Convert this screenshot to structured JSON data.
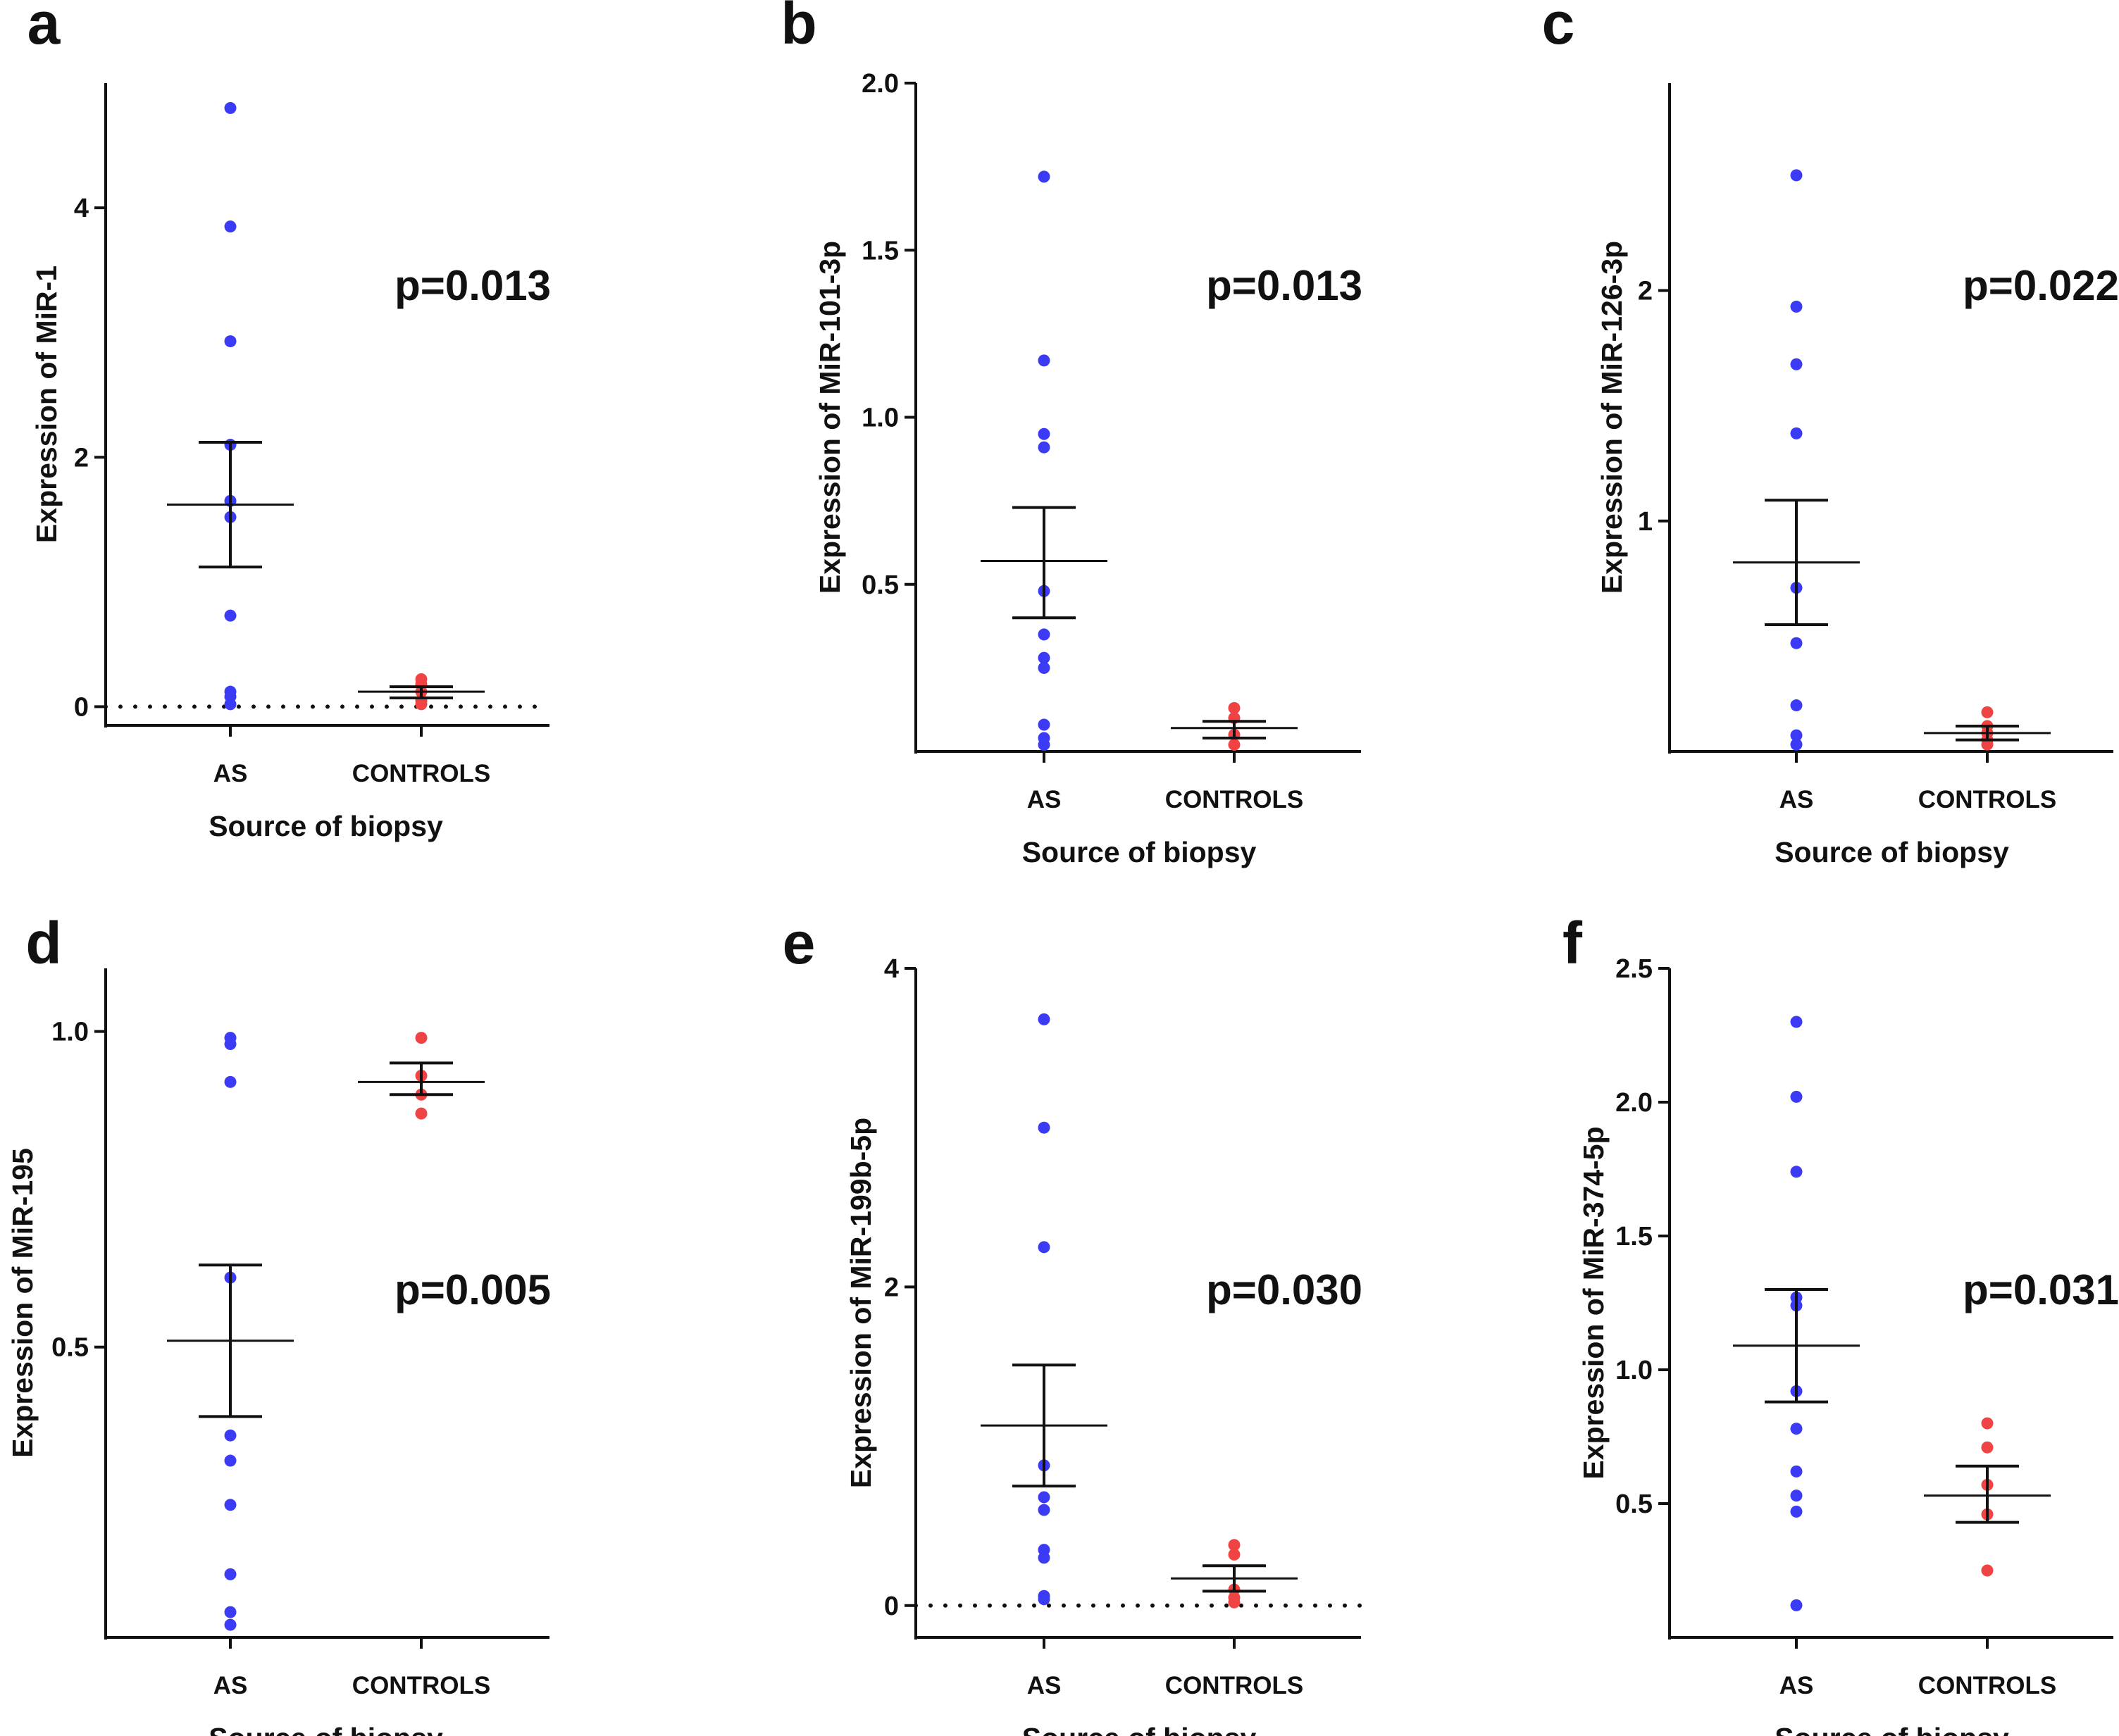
{
  "figure": {
    "colors": {
      "as": "#3b3bf5",
      "controls": "#f04444",
      "axis": "#111111"
    }
  },
  "chart_data": [
    {
      "panel": "a",
      "type": "scatter",
      "ylabel": "Expression of MiR-1",
      "xlabel": "Source of  biopsy",
      "categories": [
        "AS",
        "CONTROLS"
      ],
      "pvalue": "p=0.013",
      "ylim": [
        -0.15,
        5.0
      ],
      "yticks": [
        0,
        2,
        4
      ],
      "tick_labels": [
        "0",
        "2",
        "4"
      ],
      "zero_line": true,
      "series": [
        {
          "name": "AS",
          "values": [
            4.8,
            3.85,
            2.93,
            2.1,
            1.65,
            1.52,
            0.73,
            0.12,
            0.08,
            0.02
          ],
          "mean": 1.62,
          "sem_low": 1.12,
          "sem_high": 2.12
        },
        {
          "name": "CONTROLS",
          "values": [
            0.22,
            0.18,
            0.12,
            0.05,
            0.02
          ],
          "mean": 0.12,
          "sem_low": 0.07,
          "sem_high": 0.16
        }
      ]
    },
    {
      "panel": "b",
      "type": "scatter",
      "ylabel": "Expression of MiR-101-3p",
      "xlabel": "Source of  biopsy",
      "categories": [
        "AS",
        "CONTROLS"
      ],
      "pvalue": "p=0.013",
      "ylim": [
        0.0,
        2.0
      ],
      "yticks": [
        0.5,
        1.0,
        1.5,
        2.0
      ],
      "tick_labels": [
        "0.5",
        "1.0",
        "1.5",
        "2.0"
      ],
      "zero_line": false,
      "series": [
        {
          "name": "AS",
          "values": [
            1.72,
            1.17,
            0.95,
            0.91,
            0.48,
            0.35,
            0.28,
            0.25,
            0.08,
            0.04,
            0.02
          ],
          "mean": 0.57,
          "sem_low": 0.4,
          "sem_high": 0.73
        },
        {
          "name": "CONTROLS",
          "values": [
            0.13,
            0.1,
            0.05,
            0.02
          ],
          "mean": 0.07,
          "sem_low": 0.04,
          "sem_high": 0.09
        }
      ]
    },
    {
      "panel": "c",
      "type": "scatter",
      "ylabel": "Expression of MiR-126-3p",
      "xlabel": "Source of  biopsy",
      "categories": [
        "AS",
        "CONTROLS"
      ],
      "pvalue": "p=0.022",
      "ylim": [
        0.0,
        2.9
      ],
      "yticks": [
        1,
        2
      ],
      "tick_labels": [
        "1",
        "2"
      ],
      "zero_line": false,
      "series": [
        {
          "name": "AS",
          "values": [
            2.5,
            1.93,
            1.68,
            1.38,
            0.71,
            0.47,
            0.2,
            0.07,
            0.03
          ],
          "mean": 0.82,
          "sem_low": 0.55,
          "sem_high": 1.09
        },
        {
          "name": "CONTROLS",
          "values": [
            0.17,
            0.11,
            0.08,
            0.05,
            0.03
          ],
          "mean": 0.08,
          "sem_low": 0.05,
          "sem_high": 0.11
        }
      ]
    },
    {
      "panel": "d",
      "type": "scatter",
      "ylabel": "Expression of MiR-195",
      "xlabel": "Source of  biopsy",
      "categories": [
        "AS",
        "CONTROLS"
      ],
      "pvalue": "p=0.005",
      "ylim": [
        0.04,
        1.1
      ],
      "yticks": [
        0.5,
        1.0
      ],
      "tick_labels": [
        "0.5",
        "1.0"
      ],
      "zero_line": false,
      "series": [
        {
          "name": "AS",
          "values": [
            0.99,
            0.98,
            0.92,
            0.61,
            0.36,
            0.32,
            0.25,
            0.14,
            0.08,
            0.06
          ],
          "mean": 0.51,
          "sem_low": 0.39,
          "sem_high": 0.63
        },
        {
          "name": "CONTROLS",
          "values": [
            0.99,
            0.93,
            0.9,
            0.87
          ],
          "mean": 0.92,
          "sem_low": 0.9,
          "sem_high": 0.95
        }
      ]
    },
    {
      "panel": "e",
      "type": "scatter",
      "ylabel": "Expression of MiR-199b-5p",
      "xlabel": "Source of  biopsy",
      "categories": [
        "AS",
        "CONTROLS"
      ],
      "pvalue": "p=0.030",
      "ylim": [
        -0.2,
        4.0
      ],
      "yticks": [
        0,
        2,
        4
      ],
      "tick_labels": [
        "0",
        "2",
        "4"
      ],
      "zero_line": true,
      "series": [
        {
          "name": "AS",
          "values": [
            3.68,
            3.0,
            2.25,
            0.88,
            0.68,
            0.6,
            0.35,
            0.3,
            0.06,
            0.04
          ],
          "mean": 1.13,
          "sem_low": 0.75,
          "sem_high": 1.51
        },
        {
          "name": "CONTROLS",
          "values": [
            0.38,
            0.32,
            0.1,
            0.05,
            0.02
          ],
          "mean": 0.17,
          "sem_low": 0.09,
          "sem_high": 0.25
        }
      ]
    },
    {
      "panel": "f",
      "type": "scatter",
      "ylabel": "Expression of MiR-374-5p",
      "xlabel": "Source of  biopsy",
      "categories": [
        "AS",
        "CONTROLS"
      ],
      "pvalue": "p=0.031",
      "ylim": [
        0.0,
        2.5
      ],
      "yticks": [
        0.5,
        1.0,
        1.5,
        2.0,
        2.5
      ],
      "tick_labels": [
        "0.5",
        "1.0",
        "1.5",
        "2.0",
        "2.5"
      ],
      "zero_line": false,
      "series": [
        {
          "name": "AS",
          "values": [
            2.3,
            2.02,
            1.74,
            1.27,
            1.24,
            0.92,
            0.78,
            0.62,
            0.53,
            0.47,
            0.12
          ],
          "mean": 1.09,
          "sem_low": 0.88,
          "sem_high": 1.3
        },
        {
          "name": "CONTROLS",
          "values": [
            0.8,
            0.71,
            0.57,
            0.46,
            0.25
          ],
          "mean": 0.53,
          "sem_low": 0.43,
          "sem_high": 0.64
        }
      ]
    }
  ]
}
